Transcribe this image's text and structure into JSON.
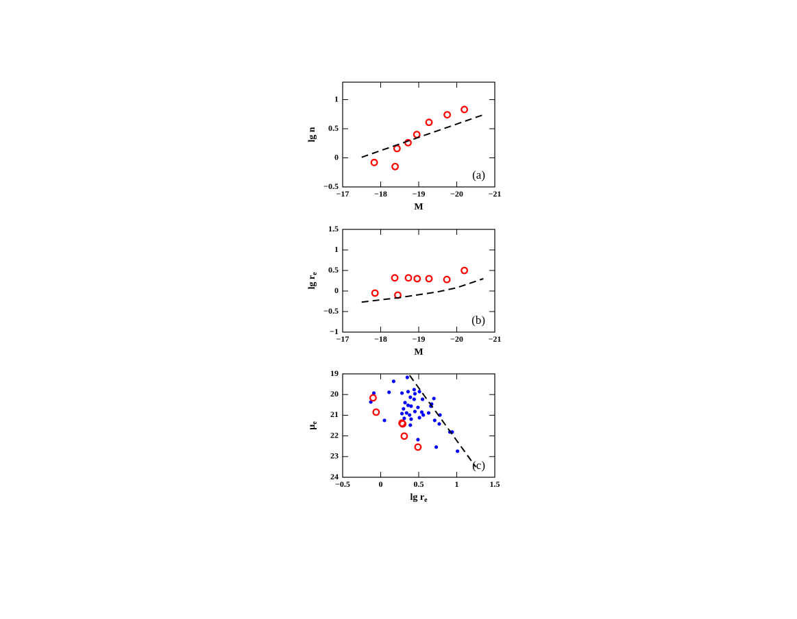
{
  "chart_data": [
    {
      "type": "scatter",
      "annotation": "(a)",
      "xlabel": "M",
      "ylabel": "lg n",
      "xlim": [
        -17,
        -21
      ],
      "ylim": [
        -0.5,
        1.3
      ],
      "xticks": [
        {
          "value": -17,
          "label": "−17"
        },
        {
          "value": -18,
          "label": "−18"
        },
        {
          "value": -19,
          "label": "−19"
        },
        {
          "value": -20,
          "label": "−20"
        },
        {
          "value": -21,
          "label": "−21"
        }
      ],
      "yticks": [
        {
          "value": -0.5,
          "label": "−0.5"
        },
        0,
        0.5,
        1
      ],
      "series": [
        {
          "type": "scatter",
          "marker": "open-circle",
          "color": "#ff0000",
          "x": [
            -17.83,
            -18.38,
            -18.43,
            -18.72,
            -18.95,
            -19.27,
            -19.75,
            -20.2
          ],
          "values": [
            -0.08,
            -0.15,
            0.16,
            0.26,
            0.4,
            0.61,
            0.74,
            0.83
          ]
        },
        {
          "type": "line",
          "dash": true,
          "color": "#000000",
          "x": [
            -17.5,
            -20.7
          ],
          "values": [
            0.01,
            0.74
          ]
        }
      ]
    },
    {
      "type": "scatter",
      "annotation": "(b)",
      "xlabel": "M",
      "ylabel": "lg r",
      "ylabel_sub": "e",
      "xlim": [
        -17,
        -21
      ],
      "ylim": [
        -1,
        1.5
      ],
      "xticks": [
        {
          "value": -17,
          "label": "−17"
        },
        {
          "value": -18,
          "label": "−18"
        },
        {
          "value": -19,
          "label": "−19"
        },
        {
          "value": -20,
          "label": "−20"
        },
        {
          "value": -21,
          "label": "−21"
        }
      ],
      "yticks": [
        {
          "value": -1,
          "label": "−1"
        },
        {
          "value": -0.5,
          "label": "−0.5"
        },
        0,
        0.5,
        1,
        1.5
      ],
      "series": [
        {
          "type": "scatter",
          "marker": "open-circle",
          "color": "#ff0000",
          "x": [
            -17.85,
            -18.37,
            -18.45,
            -18.73,
            -18.96,
            -19.27,
            -19.74,
            -20.2
          ],
          "values": [
            -0.05,
            0.32,
            -0.1,
            0.32,
            0.3,
            0.3,
            0.28,
            0.5
          ]
        },
        {
          "type": "line",
          "dash": true,
          "color": "#000000",
          "x": [
            -17.5,
            -18.5,
            -19.5,
            -20.0,
            -20.7
          ],
          "values": [
            -0.27,
            -0.16,
            -0.02,
            0.08,
            0.3
          ]
        }
      ]
    },
    {
      "type": "scatter",
      "annotation": "(c)",
      "xlabel": "lg r",
      "xlabel_sub": "e",
      "ylabel": "μ",
      "ylabel_sub": "e",
      "xlim": [
        -0.5,
        1.5
      ],
      "ylim": [
        24,
        19
      ],
      "xticks": [
        {
          "value": -0.5,
          "label": "−0.5"
        },
        0,
        0.5,
        1,
        1.5
      ],
      "yticks": [
        19,
        20,
        21,
        22,
        23,
        24
      ],
      "series": [
        {
          "type": "scatter",
          "marker": "dot",
          "color": "#0000ff",
          "x": [
            0.17,
            0.35,
            0.11,
            -0.09,
            -0.13,
            0.05,
            0.28,
            0.36,
            0.44,
            0.45,
            0.51,
            0.39,
            0.32,
            0.44,
            0.55,
            0.7,
            0.3,
            0.36,
            0.4,
            0.49,
            0.34,
            0.28,
            0.38,
            0.45,
            0.54,
            0.67,
            0.63,
            0.56,
            0.66,
            0.51,
            0.4,
            0.31,
            0.39,
            0.71,
            0.77,
            0.78,
            0.91,
            0.94,
            0.49,
            0.73,
            1.01
          ],
          "values": [
            19.36,
            19.17,
            19.89,
            19.93,
            20.36,
            21.25,
            19.93,
            19.86,
            19.76,
            19.96,
            19.86,
            20.13,
            20.39,
            20.23,
            20.23,
            20.19,
            20.69,
            20.52,
            20.56,
            20.62,
            20.89,
            20.92,
            20.99,
            20.82,
            20.85,
            20.46,
            20.89,
            20.99,
            20.56,
            21.12,
            21.19,
            21.15,
            21.48,
            21.25,
            21.42,
            20.99,
            21.81,
            21.81,
            22.18,
            22.54,
            22.74
          ]
        },
        {
          "type": "scatter",
          "marker": "open-circle",
          "color": "#ff0000",
          "x": [
            -0.1,
            -0.06,
            0.28,
            0.29,
            0.31,
            0.49
          ],
          "values": [
            20.16,
            20.85,
            21.38,
            21.42,
            22.01,
            22.54
          ]
        },
        {
          "type": "line",
          "dash": true,
          "color": "#000000",
          "x": [
            0.38,
            1.25
          ],
          "values": [
            19.07,
            23.5
          ]
        }
      ]
    }
  ]
}
